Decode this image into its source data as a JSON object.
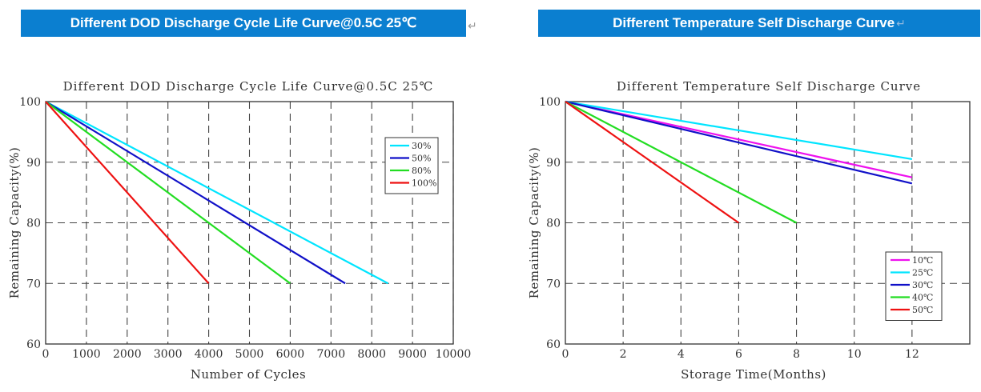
{
  "banners": {
    "left": "Different DOD Discharge Cycle Life Curve@0.5C 25℃",
    "right": "Different Temperature Self Discharge Curve",
    "mark": "↵"
  },
  "chart_data": [
    {
      "type": "line",
      "title": "Different DOD Discharge Cycle Life Curve@0.5C 25℃",
      "xlabel": "Number of Cycles",
      "ylabel": "Remaining Capacity(%)",
      "xlim": [
        0,
        10000
      ],
      "ylim": [
        60,
        100
      ],
      "xticks": [
        0,
        1000,
        2000,
        3000,
        4000,
        5000,
        6000,
        7000,
        8000,
        9000,
        10000
      ],
      "yticks": [
        60,
        70,
        80,
        90,
        100
      ],
      "grid": true,
      "legend_position": "top-right",
      "series": [
        {
          "name": "30%",
          "color": "#00e5ff",
          "points": [
            [
              0,
              100
            ],
            [
              8400,
              70
            ]
          ]
        },
        {
          "name": "50%",
          "color": "#1010c8",
          "points": [
            [
              0,
              100
            ],
            [
              7350,
              70
            ]
          ]
        },
        {
          "name": "80%",
          "color": "#22dd22",
          "points": [
            [
              0,
              100
            ],
            [
              6000,
              70
            ]
          ]
        },
        {
          "name": "100%",
          "color": "#ee1111",
          "points": [
            [
              0,
              100
            ],
            [
              4000,
              70
            ]
          ]
        }
      ]
    },
    {
      "type": "line",
      "title": "Different Temperature Self Discharge Curve",
      "xlabel": "Storage Time(Months)",
      "ylabel": "Remaining Capacity(%)",
      "xlim": [
        0,
        14
      ],
      "ylim": [
        60,
        100
      ],
      "xticks": [
        0,
        2,
        4,
        6,
        8,
        10,
        12
      ],
      "yticks": [
        60,
        70,
        80,
        90,
        100
      ],
      "grid": true,
      "legend_position": "bottom-right",
      "series": [
        {
          "name": "10℃",
          "color": "#ee11ee",
          "points": [
            [
              0,
              100
            ],
            [
              12,
              87.5
            ]
          ]
        },
        {
          "name": "25℃",
          "color": "#00e5ff",
          "points": [
            [
              0,
              100
            ],
            [
              12,
              90.5
            ]
          ]
        },
        {
          "name": "30℃",
          "color": "#1010c8",
          "points": [
            [
              0,
              100
            ],
            [
              12,
              86.5
            ]
          ]
        },
        {
          "name": "40℃",
          "color": "#22dd22",
          "points": [
            [
              0,
              100
            ],
            [
              8,
              80
            ]
          ]
        },
        {
          "name": "50℃",
          "color": "#ee1111",
          "points": [
            [
              0,
              100
            ],
            [
              6,
              80
            ]
          ]
        }
      ]
    }
  ]
}
